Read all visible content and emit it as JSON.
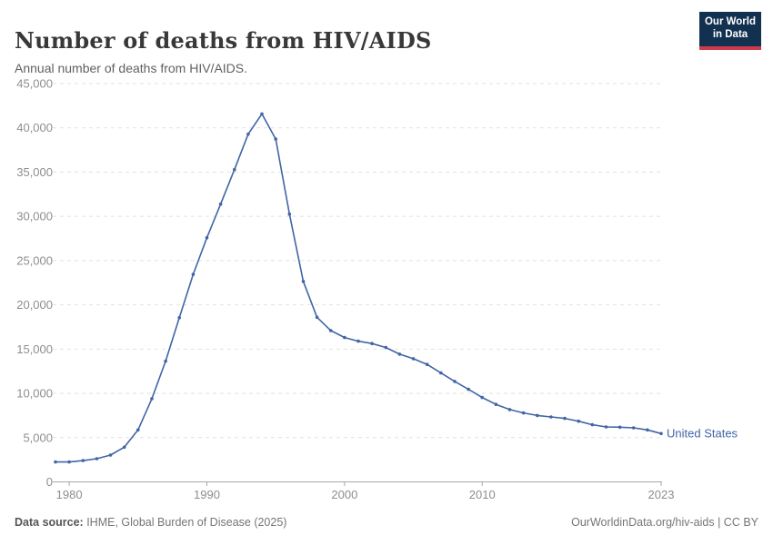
{
  "chart_data": {
    "type": "line",
    "title": "Number of deaths from HIV/AIDS",
    "subtitle": "Annual number of deaths from HIV/AIDS.",
    "xlabel": "",
    "ylabel": "",
    "ylim": [
      0,
      45000
    ],
    "yticks": [
      0,
      5000,
      10000,
      15000,
      20000,
      25000,
      30000,
      35000,
      40000,
      45000
    ],
    "xticks": [
      1980,
      1990,
      2000,
      2010,
      2023
    ],
    "grid": "horizontal-dashed",
    "legend": "end-of-line-label",
    "series": [
      {
        "name": "United States",
        "color": "#4165a5",
        "x": [
          1979,
          1980,
          1981,
          1982,
          1983,
          1984,
          1985,
          1986,
          1987,
          1988,
          1989,
          1990,
          1991,
          1992,
          1993,
          1994,
          1995,
          1996,
          1997,
          1998,
          1999,
          2000,
          2001,
          2002,
          2003,
          2004,
          2005,
          2006,
          2007,
          2008,
          2009,
          2010,
          2011,
          2012,
          2013,
          2014,
          2015,
          2016,
          2017,
          2018,
          2019,
          2020,
          2021,
          2022,
          2023
        ],
        "values": [
          2250,
          2250,
          2400,
          2620,
          3030,
          3920,
          5870,
          9400,
          13640,
          18540,
          23440,
          27580,
          31380,
          35280,
          39280,
          41570,
          38730,
          30250,
          22650,
          18600,
          17100,
          16310,
          15900,
          15630,
          15180,
          14430,
          13920,
          13270,
          12300,
          11350,
          10460,
          9530,
          8750,
          8170,
          7790,
          7500,
          7340,
          7170,
          6860,
          6450,
          6210,
          6180,
          6110,
          5870,
          5460
        ]
      }
    ]
  },
  "header": {
    "logo": {
      "line1": "Our World",
      "line2": "in Data"
    }
  },
  "footer": {
    "datasource_label": "Data source:",
    "datasource_value": " IHME, Global Burden of Disease (2025)",
    "license": "OurWorldinData.org/hiv-aids | CC BY"
  },
  "colors": {
    "line": "#4165a5",
    "grid": "#e2e2e2",
    "axis": "#a8a8a8",
    "tick_text": "#8e8e8e",
    "title_text": "#383838",
    "subtitle_text": "#616161"
  }
}
